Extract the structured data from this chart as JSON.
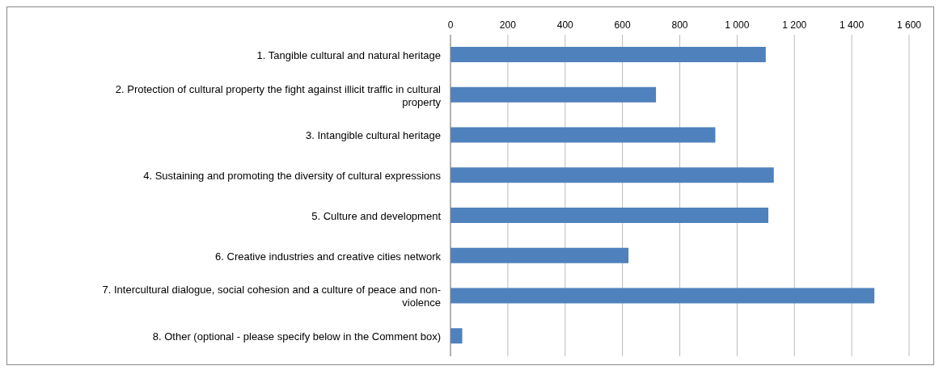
{
  "chart_data": {
    "type": "bar",
    "orientation": "horizontal",
    "categories": [
      "1. Tangible cultural and natural heritage",
      "2. Protection of cultural property the fight against illicit traffic in cultural property",
      "3. Intangible cultural heritage",
      "4. Sustaining and promoting the diversity of cultural expressions",
      "5. Culture and development",
      "6. Creative industries and creative cities network",
      "7. Intercultural dialogue, social cohesion and a culture of peace and non-violence",
      "8. Other (optional - please specify below in the Comment box)"
    ],
    "values": [
      1100,
      717,
      924,
      1128,
      1109,
      621,
      1479,
      41
    ],
    "color": "#4f81bd",
    "xlim": [
      0,
      1600
    ],
    "xticks": [
      0,
      200,
      400,
      600,
      800,
      {
        "value": 1000,
        "label": "1 000"
      },
      {
        "value": 1200,
        "label": "1 200"
      },
      {
        "value": 1400,
        "label": "1 400"
      },
      {
        "value": 1600,
        "label": "1 600"
      }
    ],
    "grid": "x"
  }
}
